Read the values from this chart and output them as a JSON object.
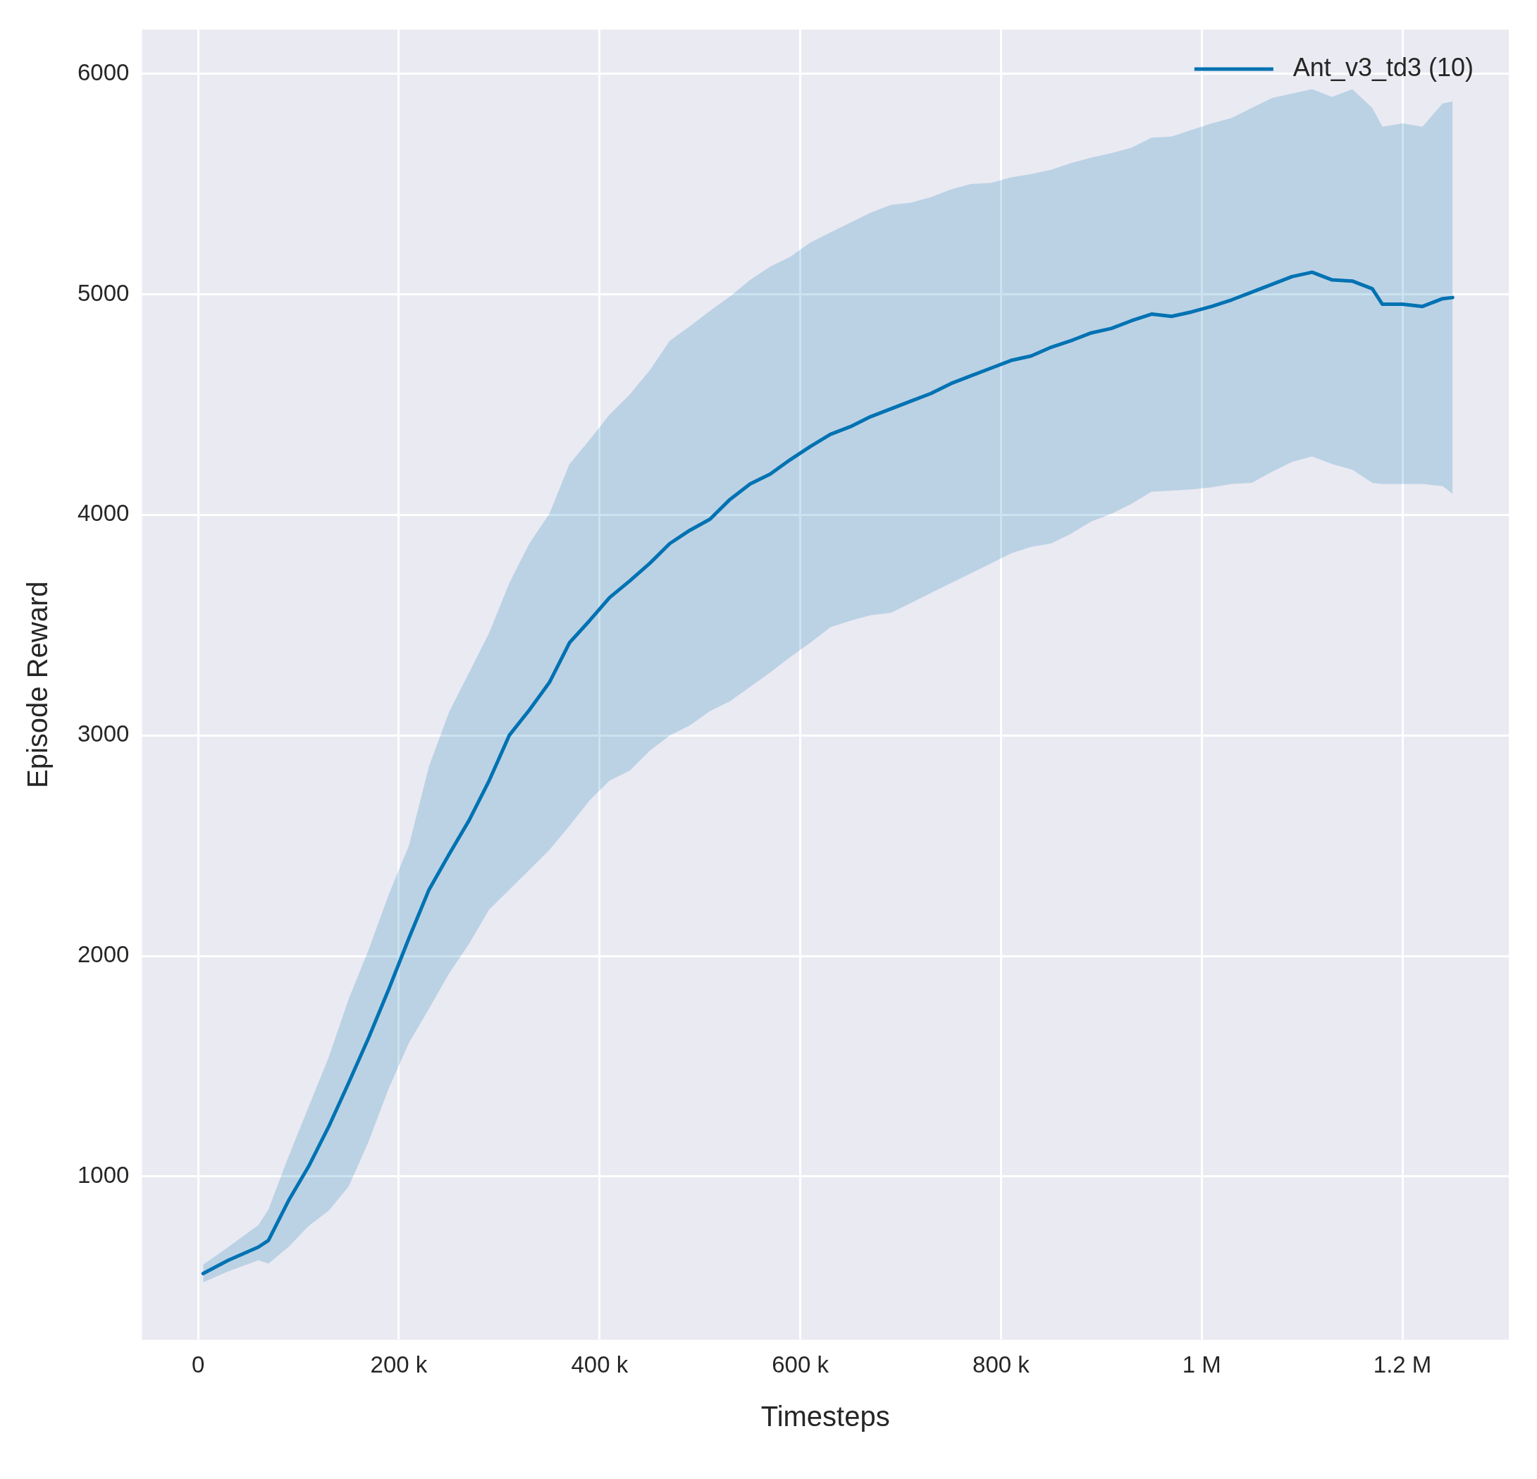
{
  "chart_data": {
    "type": "line",
    "xlabel": "Timesteps",
    "ylabel": "Episode Reward",
    "x": [
      5000,
      30000,
      60000,
      70000,
      90000,
      110000,
      130000,
      150000,
      170000,
      190000,
      210000,
      230000,
      250000,
      270000,
      290000,
      310000,
      330000,
      350000,
      370000,
      390000,
      410000,
      430000,
      450000,
      470000,
      490000,
      510000,
      530000,
      550000,
      570000,
      590000,
      610000,
      630000,
      650000,
      670000,
      690000,
      710000,
      730000,
      750000,
      770000,
      790000,
      810000,
      830000,
      850000,
      870000,
      890000,
      910000,
      930000,
      950000,
      970000,
      990000,
      1010000,
      1030000,
      1050000,
      1070000,
      1090000,
      1110000,
      1130000,
      1150000,
      1170000,
      1180000,
      1200000,
      1220000,
      1240000,
      1250000
    ],
    "series": [
      {
        "name": "Ant_v3_td3 (10)",
        "color": "#0072b2",
        "values": [
          560,
          620,
          680,
          710,
          890,
          1045,
          1225,
          1425,
          1630,
          1850,
          2080,
          2300,
          2460,
          2615,
          2795,
          3000,
          3115,
          3240,
          3420,
          3520,
          3625,
          3700,
          3780,
          3870,
          3930,
          3980,
          4070,
          4140,
          4185,
          4250,
          4310,
          4365,
          4400,
          4445,
          4480,
          4515,
          4550,
          4595,
          4630,
          4665,
          4700,
          4720,
          4760,
          4790,
          4825,
          4845,
          4880,
          4910,
          4900,
          4920,
          4945,
          4975,
          5010,
          5045,
          5080,
          5100,
          5065,
          5060,
          5025,
          4955,
          4955,
          4945,
          4980,
          4985
        ],
        "upper": [
          600,
          680,
          780,
          850,
          1090,
          1315,
          1540,
          1805,
          2030,
          2280,
          2500,
          2860,
          3105,
          3285,
          3465,
          3690,
          3870,
          4005,
          4230,
          4340,
          4455,
          4545,
          4655,
          4790,
          4855,
          4925,
          4990,
          5065,
          5125,
          5170,
          5235,
          5280,
          5325,
          5370,
          5405,
          5415,
          5440,
          5475,
          5500,
          5505,
          5530,
          5545,
          5565,
          5595,
          5620,
          5640,
          5665,
          5710,
          5715,
          5745,
          5775,
          5800,
          5845,
          5890,
          5910,
          5930,
          5895,
          5930,
          5845,
          5760,
          5775,
          5760,
          5865,
          5875
        ],
        "lower": [
          520,
          570,
          620,
          605,
          680,
          775,
          845,
          955,
          1160,
          1400,
          1605,
          1760,
          1920,
          2055,
          2210,
          2300,
          2390,
          2480,
          2590,
          2705,
          2795,
          2840,
          2930,
          3000,
          3045,
          3110,
          3155,
          3220,
          3285,
          3355,
          3420,
          3490,
          3520,
          3545,
          3555,
          3600,
          3645,
          3690,
          3735,
          3780,
          3825,
          3855,
          3870,
          3915,
          3970,
          4005,
          4050,
          4105,
          4110,
          4115,
          4125,
          4140,
          4145,
          4195,
          4240,
          4265,
          4230,
          4205,
          4145,
          4140,
          4140,
          4140,
          4130,
          4095
        ]
      }
    ],
    "xlim": [
      -56000,
      1306000
    ],
    "ylim": [
      260,
      6200
    ],
    "xticks": [
      0,
      {
        "value": 200000,
        "label": "200 k"
      },
      {
        "value": 400000,
        "label": "400 k"
      },
      {
        "value": 600000,
        "label": "600 k"
      },
      {
        "value": 800000,
        "label": "800 k"
      },
      {
        "value": 1000000,
        "label": "1 M"
      },
      {
        "value": 1200000,
        "label": "1.2 M"
      }
    ],
    "yticks": [
      1000,
      2000,
      3000,
      4000,
      5000,
      6000
    ],
    "grid": true,
    "legend": "top right",
    "marker": "none",
    "line_style": "solid"
  }
}
